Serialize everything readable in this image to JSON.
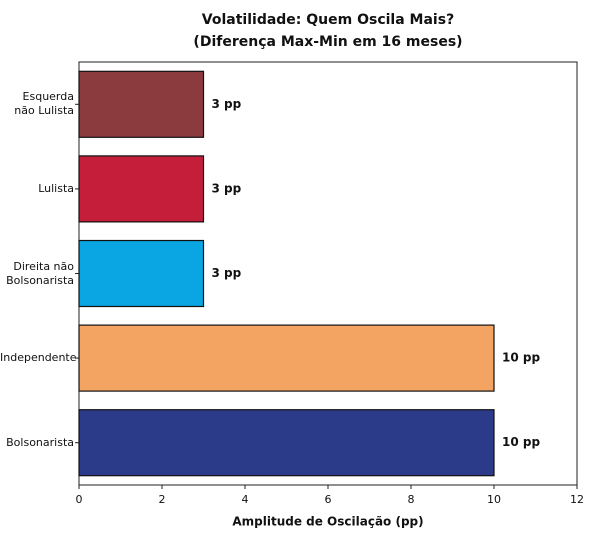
{
  "chart_data": {
    "type": "barh",
    "title": "Volatilidade: Quem Oscila Mais?",
    "subtitle": "(Diferença Max-Min em 16 meses)",
    "x_label": "Amplitude de Oscilação (pp)",
    "categories": [
      "Esquerda não Lulista",
      "Lulista",
      "Direita não Bolsonarista",
      "Independente",
      "Bolsonarista"
    ],
    "values": [
      3,
      3,
      3,
      10,
      10
    ],
    "value_labels": [
      "3 pp",
      "3 pp",
      "3 pp",
      "10 pp",
      "10 pp"
    ],
    "colors": [
      "#8b3a3e",
      "#c41e3a",
      "#0aa6e3",
      "#f4a462",
      "#2c3a8a"
    ],
    "xlim": [
      0,
      12
    ],
    "xticks": [
      0,
      2,
      4,
      6,
      8,
      10,
      12
    ],
    "grid": false
  }
}
